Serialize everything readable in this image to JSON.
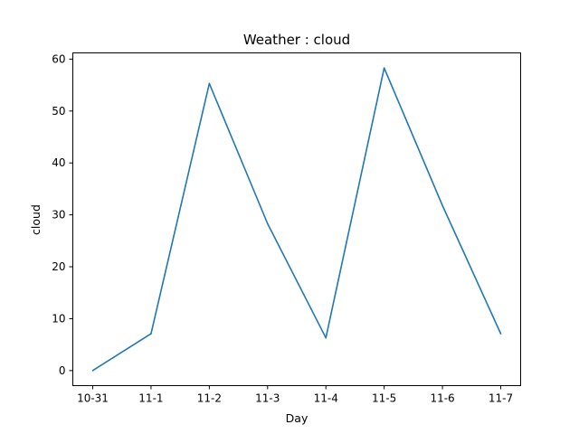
{
  "chart_data": {
    "type": "line",
    "title": "Weather : cloud",
    "xlabel": "Day",
    "ylabel": "cloud",
    "categories": [
      "10-31",
      "11-1",
      "11-2",
      "11-3",
      "11-4",
      "11-5",
      "11-6",
      "11-7"
    ],
    "series": [
      {
        "values": [
          0,
          7.1,
          55.3,
          28.3,
          6.3,
          58.3,
          31.8,
          7.1
        ]
      }
    ],
    "ylim": [
      -2.9,
      61.2
    ],
    "yticks": [
      0,
      10,
      20,
      30,
      40,
      50,
      60
    ],
    "grid": false,
    "line_color": "#1f77b4"
  }
}
